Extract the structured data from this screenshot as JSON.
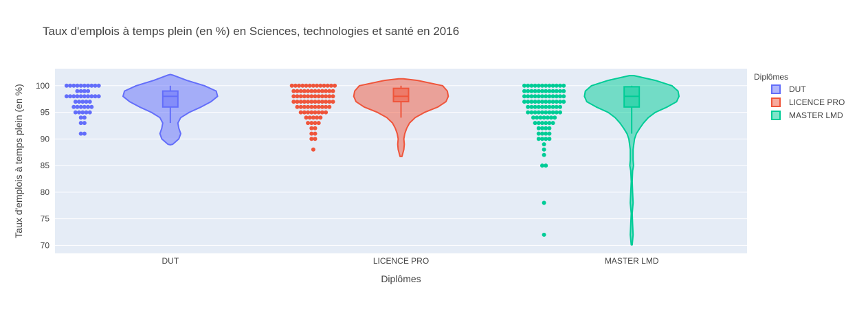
{
  "chart_data": {
    "type": "violin",
    "title": "Taux d'emplois à temps plein (en %) en Sciences, technologies et santé en 2016",
    "xlabel": "Diplômes",
    "ylabel": "Taux d'emplois à temps plein (en %)",
    "categories": [
      "DUT",
      "LICENCE PRO",
      "MASTER LMD"
    ],
    "ylim": [
      68.5,
      103.2
    ],
    "yticks": [
      70,
      75,
      80,
      85,
      90,
      95,
      100
    ],
    "legend": {
      "title": "Diplômes",
      "position": "top-right"
    },
    "grid": true,
    "series": [
      {
        "name": "DUT",
        "color": "#636efa",
        "box": {
          "q1": 96,
          "median": 98,
          "q3": 99,
          "lower_whisker": 93,
          "upper_whisker": 100
        },
        "range": [
          88.9,
          102.1
        ],
        "violin_profile": [
          [
            89,
            0.05
          ],
          [
            90,
            0.18
          ],
          [
            91,
            0.22
          ],
          [
            92,
            0.18
          ],
          [
            93,
            0.16
          ],
          [
            94,
            0.22
          ],
          [
            95,
            0.4
          ],
          [
            96,
            0.65
          ],
          [
            97,
            0.86
          ],
          [
            98,
            1.0
          ],
          [
            99,
            0.97
          ],
          [
            100,
            0.72
          ],
          [
            101,
            0.35
          ],
          [
            102,
            0.05
          ]
        ],
        "points": [
          100,
          100,
          100,
          100,
          100,
          100,
          100,
          100,
          100,
          100,
          99,
          99,
          99,
          99,
          98,
          98,
          98,
          98,
          98,
          98,
          98,
          98,
          98,
          98,
          97,
          97,
          97,
          97,
          97,
          96,
          96,
          96,
          96,
          96,
          96,
          95,
          95,
          95,
          95,
          95,
          94,
          94,
          93,
          93,
          91,
          91
        ]
      },
      {
        "name": "LICENCE PRO",
        "color": "#ef553b",
        "box": {
          "q1": 97,
          "median": 98,
          "q3": 99.5,
          "lower_whisker": 94,
          "upper_whisker": 100
        },
        "range": [
          86.7,
          101.3
        ],
        "violin_profile": [
          [
            86.7,
            0.02
          ],
          [
            88,
            0.06
          ],
          [
            89,
            0.07
          ],
          [
            90,
            0.06
          ],
          [
            91,
            0.08
          ],
          [
            92,
            0.12
          ],
          [
            93,
            0.18
          ],
          [
            94,
            0.3
          ],
          [
            95,
            0.5
          ],
          [
            96,
            0.78
          ],
          [
            97,
            0.95
          ],
          [
            98,
            1.0
          ],
          [
            99,
            0.98
          ],
          [
            100,
            0.88
          ],
          [
            101,
            0.35
          ],
          [
            101.3,
            0.05
          ]
        ],
        "points": [
          100,
          100,
          100,
          100,
          100,
          100,
          100,
          100,
          100,
          100,
          100,
          100,
          100,
          99,
          99,
          99,
          99,
          99,
          99,
          99,
          99,
          99,
          99,
          99,
          99,
          98,
          98,
          98,
          98,
          98,
          98,
          98,
          98,
          98,
          98,
          98,
          98,
          97,
          97,
          97,
          97,
          97,
          97,
          97,
          97,
          97,
          97,
          97,
          97,
          96,
          96,
          96,
          96,
          96,
          96,
          96,
          96,
          96,
          96,
          95,
          95,
          95,
          95,
          95,
          95,
          95,
          95,
          94,
          94,
          94,
          94,
          94,
          93,
          93,
          93,
          93,
          92,
          92,
          91,
          91,
          90,
          90,
          88
        ]
      },
      {
        "name": "MASTER LMD",
        "color": "#00cc96",
        "box": {
          "q1": 96,
          "median": 98,
          "q3": 99.8,
          "lower_whisker": 91,
          "upper_whisker": 100
        },
        "range": [
          70.1,
          101.9
        ],
        "violin_profile": [
          [
            70.1,
            0.01
          ],
          [
            72,
            0.03
          ],
          [
            74,
            0.02
          ],
          [
            76,
            0.01
          ],
          [
            78,
            0.03
          ],
          [
            80,
            0.02
          ],
          [
            82,
            0.01
          ],
          [
            84,
            0.02
          ],
          [
            85,
            0.04
          ],
          [
            86,
            0.03
          ],
          [
            88,
            0.03
          ],
          [
            90,
            0.06
          ],
          [
            91,
            0.1
          ],
          [
            92,
            0.17
          ],
          [
            93,
            0.25
          ],
          [
            94,
            0.35
          ],
          [
            95,
            0.5
          ],
          [
            96,
            0.75
          ],
          [
            97,
            0.95
          ],
          [
            98,
            1.0
          ],
          [
            99,
            0.98
          ],
          [
            100,
            0.85
          ],
          [
            101,
            0.5
          ],
          [
            101.9,
            0.05
          ]
        ],
        "points": [
          100,
          100,
          100,
          100,
          100,
          100,
          100,
          100,
          100,
          100,
          100,
          100,
          99,
          99,
          99,
          99,
          99,
          99,
          99,
          99,
          99,
          99,
          99,
          99,
          98,
          98,
          98,
          98,
          98,
          98,
          98,
          98,
          98,
          98,
          98,
          98,
          97,
          97,
          97,
          97,
          97,
          97,
          97,
          97,
          97,
          97,
          97,
          97,
          96,
          96,
          96,
          96,
          96,
          96,
          96,
          96,
          96,
          96,
          95,
          95,
          95,
          95,
          95,
          95,
          95,
          95,
          95,
          95,
          94,
          94,
          94,
          94,
          94,
          94,
          94,
          93,
          93,
          93,
          93,
          93,
          93,
          92,
          92,
          92,
          92,
          91,
          91,
          91,
          91,
          90,
          90,
          90,
          90,
          89,
          88,
          87,
          85,
          85,
          78,
          72
        ]
      }
    ]
  }
}
